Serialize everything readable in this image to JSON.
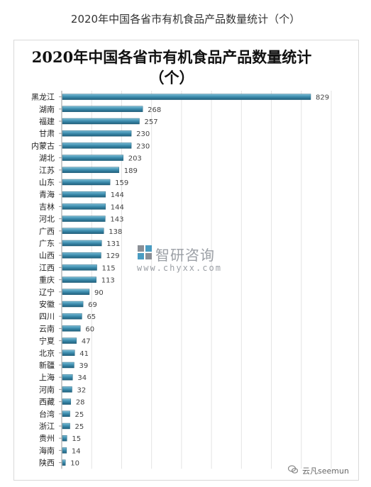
{
  "header": {
    "title": "2020年中国各省市有机食品产品数量统计（个）"
  },
  "watermark": {
    "brand": "智研咨询",
    "url": "www.chyxx.com",
    "wechat": "云凡seemun"
  },
  "chart_data": {
    "type": "bar",
    "orientation": "horizontal",
    "title": "2020年中国各省市有机食品产品数量统计（个）",
    "xlabel": "",
    "ylabel": "",
    "xlim": [
      0,
      900
    ],
    "grid": true,
    "legend": "none",
    "bar_color": "#3f8fb0",
    "categories": [
      "黑龙江",
      "湖南",
      "福建",
      "甘肃",
      "内蒙古",
      "湖北",
      "江苏",
      "山东",
      "青海",
      "吉林",
      "河北",
      "广西",
      "广东",
      "山西",
      "江西",
      "重庆",
      "辽宁",
      "安徽",
      "四川",
      "云南",
      "宁夏",
      "北京",
      "新疆",
      "上海",
      "河南",
      "西藏",
      "台湾",
      "浙江",
      "贵州",
      "海南",
      "陕西"
    ],
    "values": [
      829,
      268,
      257,
      230,
      230,
      203,
      189,
      159,
      144,
      144,
      143,
      138,
      131,
      129,
      115,
      113,
      90,
      69,
      65,
      60,
      47,
      41,
      39,
      34,
      32,
      28,
      25,
      25,
      15,
      14,
      10
    ]
  }
}
